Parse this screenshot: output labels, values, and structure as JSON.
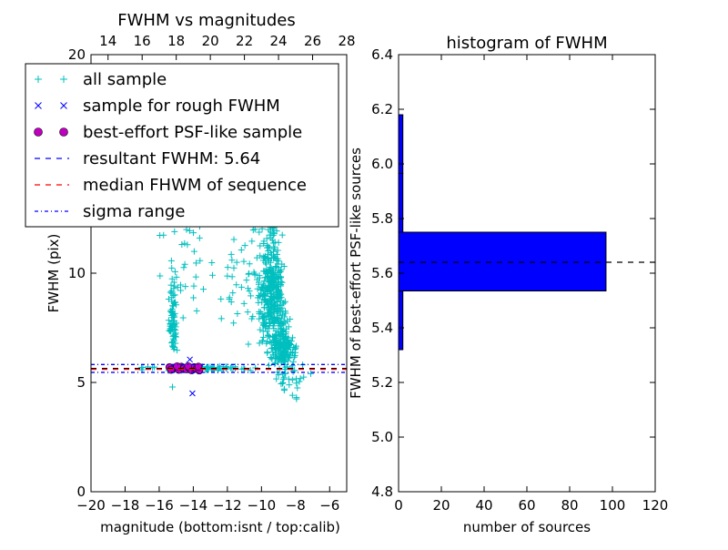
{
  "chart_data": [
    {
      "type": "scatter",
      "title": "FWHM vs magnitudes",
      "xlabel": "magnitude (bottom:isnt / top:calib)",
      "ylabel": "FWHM (pix)",
      "xlim": [
        -20,
        -5
      ],
      "ylim": [
        0,
        20
      ],
      "top_xlim": [
        13,
        28
      ],
      "xticks": [
        -20,
        -18,
        -16,
        -14,
        -12,
        -10,
        -8,
        -6
      ],
      "xtick_labels": [
        "−20",
        "−18",
        "−16",
        "−14",
        "−12",
        "−10",
        "−8",
        "−6"
      ],
      "top_xticks": [
        14,
        16,
        18,
        20,
        22,
        24,
        26,
        28
      ],
      "yticks": [
        0,
        5,
        10
      ],
      "legend": {
        "placement": "upper-left",
        "entries": [
          {
            "label": "all sample",
            "marker": "+",
            "color": "#00BFBF"
          },
          {
            "label": "sample for rough FWHM",
            "marker": "x",
            "color": "#0000FF"
          },
          {
            "label": "best-effort PSF-like sample",
            "marker": "o",
            "color": "#BF00BF"
          },
          {
            "label": "resultant FWHM: 5.64",
            "line": "dashed",
            "color": "#0000FF"
          },
          {
            "label": "median FHWM of sequence",
            "line": "dashed",
            "color": "#FF0000"
          },
          {
            "label": "sigma range",
            "line": "dashdot",
            "color": "#0000FF"
          }
        ]
      },
      "series": [
        {
          "name": "all sample",
          "marker": "+",
          "color": "#00BFBF",
          "generated": true
        },
        {
          "name": "sample for rough FWHM",
          "marker": "x",
          "color": "#0000FF",
          "points": [
            [
              -14.2,
              6.05
            ],
            [
              -14.05,
              4.5
            ],
            [
              -14.6,
              5.6
            ],
            [
              -14.4,
              5.7
            ],
            [
              -14.0,
              5.6
            ],
            [
              -13.8,
              5.55
            ],
            [
              -15.1,
              5.62
            ],
            [
              -13.6,
              5.65
            ]
          ]
        },
        {
          "name": "best-effort PSF-like sample",
          "marker": "o",
          "color": "#BF00BF",
          "points": [
            [
              -15.4,
              5.7
            ],
            [
              -15.2,
              5.62
            ],
            [
              -15.0,
              5.66
            ],
            [
              -14.85,
              5.58
            ],
            [
              -14.7,
              5.72
            ],
            [
              -14.55,
              5.64
            ],
            [
              -14.4,
              5.6
            ],
            [
              -14.25,
              5.68
            ],
            [
              -14.1,
              5.56
            ],
            [
              -13.95,
              5.7
            ],
            [
              -13.8,
              5.62
            ],
            [
              -13.65,
              5.55
            ],
            [
              -15.3,
              5.58
            ],
            [
              -14.95,
              5.74
            ],
            [
              -14.3,
              5.74
            ],
            [
              -13.7,
              5.72
            ]
          ]
        }
      ],
      "hlines": [
        {
          "name": "resultant FWHM",
          "y": 5.64,
          "color": "#000000",
          "style": "dashed"
        },
        {
          "name": "median",
          "y": 5.64,
          "color": "#FF0000",
          "style": "dashed"
        },
        {
          "name": "sigma upper",
          "y": 5.82,
          "color": "#0000FF",
          "style": "dashdot"
        },
        {
          "name": "sigma lower",
          "y": 5.46,
          "color": "#0000FF",
          "style": "dashdot"
        }
      ]
    },
    {
      "type": "bar",
      "orientation": "horizontal",
      "title": "histogram of FWHM",
      "xlabel": "number of sources",
      "ylabel": "FWHM of best-effort PSF-like sources",
      "xlim": [
        0,
        120
      ],
      "ylim": [
        4.8,
        6.4
      ],
      "xticks": [
        0,
        20,
        40,
        60,
        80,
        100,
        120
      ],
      "yticks": [
        4.8,
        5.0,
        5.2,
        5.4,
        5.6,
        5.8,
        6.0,
        6.2,
        6.4
      ],
      "color": "#0000FF",
      "bins": [
        {
          "from": 5.32,
          "to": 5.535,
          "count": 2
        },
        {
          "from": 5.535,
          "to": 5.75,
          "count": 97
        },
        {
          "from": 5.75,
          "to": 5.965,
          "count": 2
        },
        {
          "from": 5.965,
          "to": 6.18,
          "count": 2
        }
      ],
      "hline": {
        "y": 5.64,
        "color": "#000000",
        "style": "dashed"
      }
    }
  ]
}
